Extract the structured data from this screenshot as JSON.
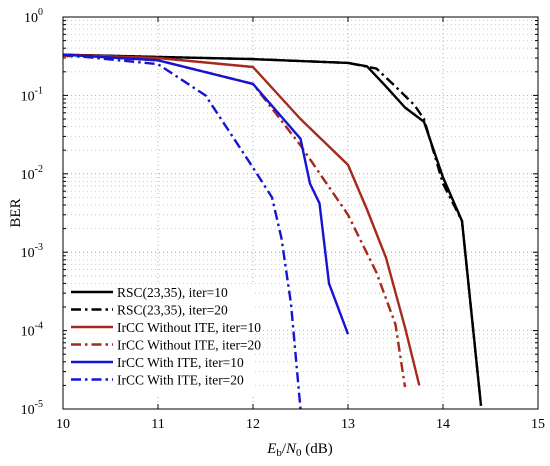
{
  "chart_data": {
    "type": "line",
    "title": "",
    "xlabel": {
      "E": "E",
      "b": "b",
      "slash": "/",
      "N": "N",
      "zero": "0",
      "unit": " (dB)"
    },
    "ylabel": "BER",
    "xlim": [
      10,
      15
    ],
    "ylim": [
      1e-05,
      1
    ],
    "y_scale": "log",
    "grid": true,
    "legend_position": "bottom-left",
    "x_ticks": [
      {
        "value": 10,
        "label": "10"
      },
      {
        "value": 11,
        "label": "11"
      },
      {
        "value": 12,
        "label": "12"
      },
      {
        "value": 13,
        "label": "13"
      },
      {
        "value": 14,
        "label": "14"
      },
      {
        "value": 15,
        "label": "15"
      }
    ],
    "y_ticks": [
      {
        "value": 1,
        "base": "10",
        "exp": "0"
      },
      {
        "value": 0.1,
        "base": "10",
        "exp": "-1"
      },
      {
        "value": 0.01,
        "base": "10",
        "exp": "-2"
      },
      {
        "value": 0.001,
        "base": "10",
        "exp": "-3"
      },
      {
        "value": 0.0001,
        "base": "10",
        "exp": "-4"
      },
      {
        "value": 1e-05,
        "base": "10",
        "exp": "-5"
      }
    ],
    "series": [
      {
        "name": "RSC(23,35), iter=10",
        "color": "#000000",
        "dash": "solid",
        "points": [
          [
            10.0,
            0.33
          ],
          [
            11.0,
            0.31
          ],
          [
            12.0,
            0.29
          ],
          [
            13.0,
            0.26
          ],
          [
            13.2,
            0.235
          ],
          [
            13.4,
            0.13
          ],
          [
            13.6,
            0.07
          ],
          [
            13.8,
            0.046
          ],
          [
            14.0,
            0.009
          ],
          [
            14.2,
            0.0025
          ],
          [
            14.4,
            1.1e-05
          ]
        ]
      },
      {
        "name": "RSC(23,35), iter=20",
        "color": "#000000",
        "dash": "dashdot",
        "points": [
          [
            10.0,
            0.33
          ],
          [
            11.0,
            0.31
          ],
          [
            12.0,
            0.29
          ],
          [
            13.0,
            0.26
          ],
          [
            13.3,
            0.22
          ],
          [
            13.5,
            0.13
          ],
          [
            13.7,
            0.075
          ],
          [
            13.8,
            0.05
          ],
          [
            14.0,
            0.0075
          ],
          [
            14.2,
            0.0025
          ],
          [
            14.4,
            1.1e-05
          ]
        ]
      },
      {
        "name": "IrCC Without ITE, iter=10",
        "color": "#a52a1c",
        "dash": "solid",
        "points": [
          [
            10.0,
            0.33
          ],
          [
            11.0,
            0.3
          ],
          [
            12.0,
            0.23
          ],
          [
            12.5,
            0.05
          ],
          [
            13.0,
            0.013
          ],
          [
            13.2,
            0.0035
          ],
          [
            13.4,
            0.00085
          ],
          [
            13.6,
            0.00011
          ],
          [
            13.75,
            2e-05
          ]
        ]
      },
      {
        "name": "IrCC Without ITE, iter=20",
        "color": "#a52a1c",
        "dash": "dashdot",
        "points": [
          [
            10.0,
            0.32
          ],
          [
            11.0,
            0.28
          ],
          [
            12.0,
            0.14
          ],
          [
            12.5,
            0.023
          ],
          [
            13.0,
            0.003
          ],
          [
            13.3,
            0.00055
          ],
          [
            13.5,
            0.00012
          ],
          [
            13.6,
            1.9e-05
          ]
        ]
      },
      {
        "name": "IrCC With ITE, iter=10",
        "color": "#1414d2",
        "dash": "solid",
        "points": [
          [
            10.0,
            0.33
          ],
          [
            11.0,
            0.28
          ],
          [
            12.0,
            0.14
          ],
          [
            12.5,
            0.028
          ],
          [
            12.6,
            0.0075
          ],
          [
            12.7,
            0.0042
          ],
          [
            12.8,
            0.0004
          ],
          [
            13.0,
            9e-05
          ]
        ]
      },
      {
        "name": "IrCC With ITE, iter=20",
        "color": "#1414d2",
        "dash": "dashdot",
        "points": [
          [
            10.0,
            0.33
          ],
          [
            11.0,
            0.25
          ],
          [
            11.5,
            0.1
          ],
          [
            12.0,
            0.012
          ],
          [
            12.2,
            0.005
          ],
          [
            12.3,
            0.0015
          ],
          [
            12.4,
            0.00022
          ],
          [
            12.5,
            1e-05
          ]
        ]
      }
    ]
  }
}
